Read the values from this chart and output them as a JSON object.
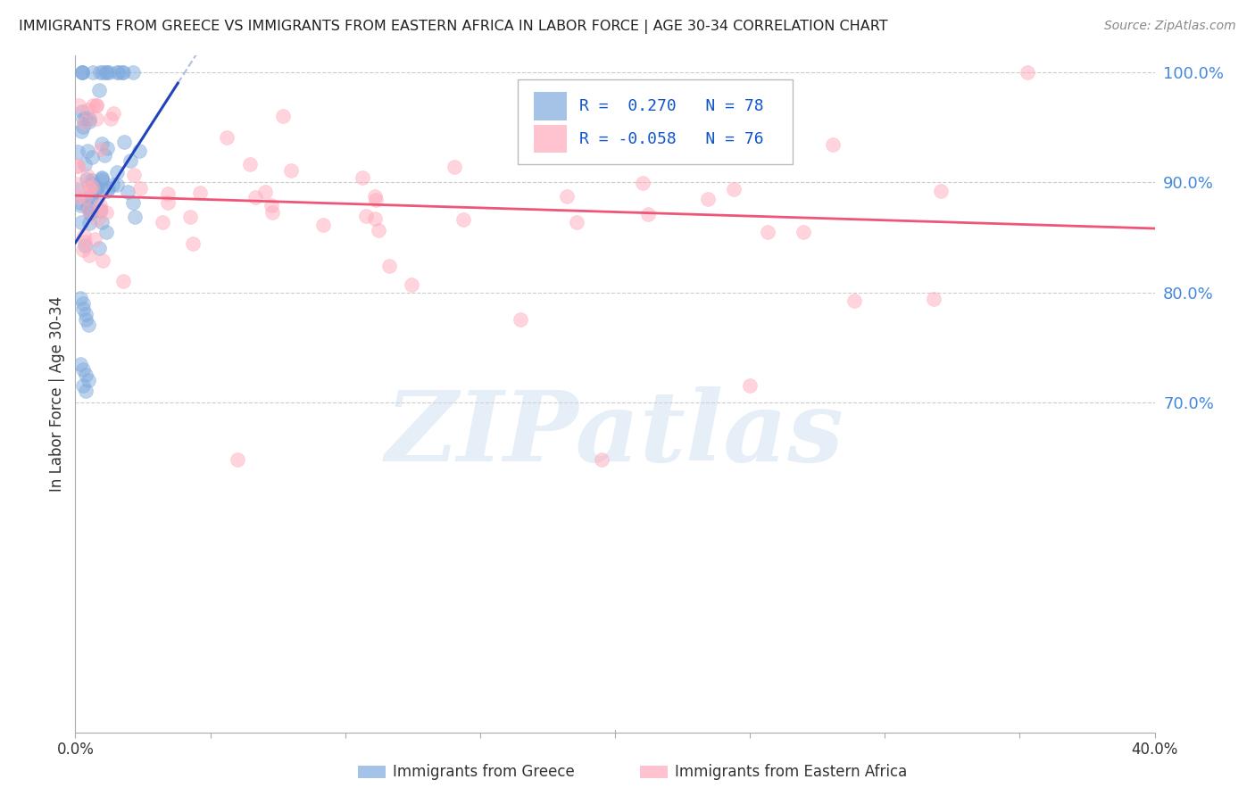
{
  "title": "IMMIGRANTS FROM GREECE VS IMMIGRANTS FROM EASTERN AFRICA IN LABOR FORCE | AGE 30-34 CORRELATION CHART",
  "source": "Source: ZipAtlas.com",
  "ylabel_left": "In Labor Force | Age 30-34",
  "x_min": 0.0,
  "x_max": 0.4,
  "y_min": 0.4,
  "y_max": 1.015,
  "y_ticks_right": [
    1.0,
    0.9,
    0.8,
    0.7
  ],
  "y_tick_labels_right": [
    "100.0%",
    "90.0%",
    "80.0%",
    "70.0%"
  ],
  "grid_color": "#cccccc",
  "bg_color": "#ffffff",
  "blue_color": "#7faadd",
  "pink_color": "#ffaabb",
  "blue_line_color": "#2244bb",
  "pink_line_color": "#ee5577",
  "watermark": "ZIPatlas",
  "legend_r_blue": " 0.270",
  "legend_n_blue": "78",
  "legend_r_pink": "-0.058",
  "legend_n_pink": "76",
  "blue_line_x0": 0.0,
  "blue_line_y0": 0.845,
  "blue_line_x1": 0.038,
  "blue_line_y1": 0.99,
  "pink_line_x0": 0.0,
  "pink_line_y0": 0.888,
  "pink_line_x1": 0.4,
  "pink_line_y1": 0.858
}
